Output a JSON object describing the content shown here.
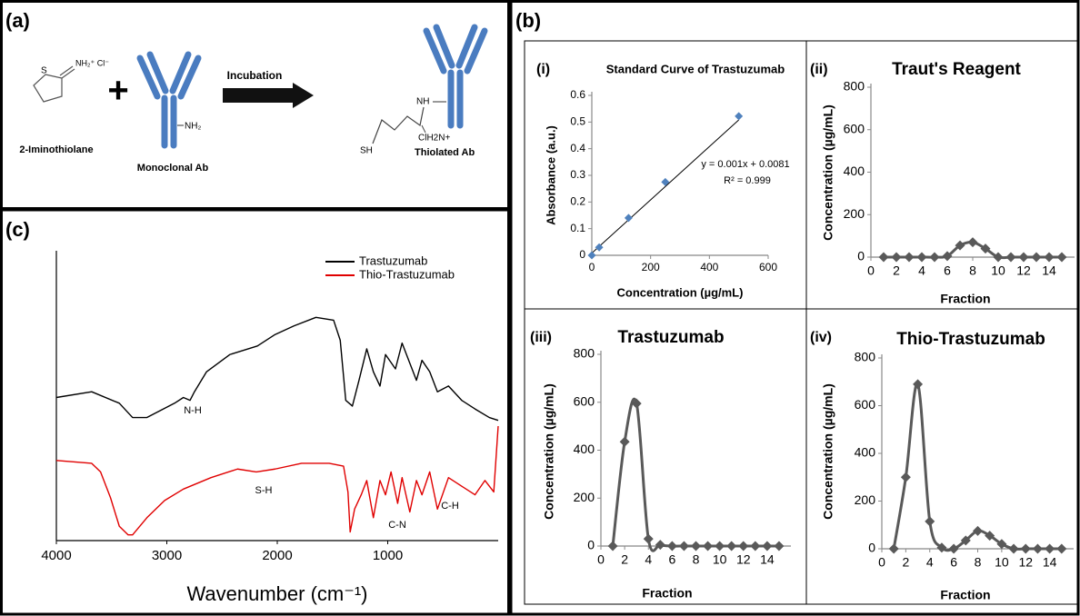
{
  "panels": {
    "a": "(a)",
    "b": "(b)",
    "c": "(c)"
  },
  "scheme": {
    "reagent_atom": "S",
    "reagent_group": "NH₂⁺ Cl⁻",
    "reagent": "2-Iminothiolane",
    "plus": "+",
    "antibody_group": "NH₂",
    "antibody": "Monoclonal Ab",
    "step": "Incubation",
    "product_nh": "NH",
    "product_amidine": "ClH2N+",
    "product_sh": "SH",
    "product": "Thiolated Ab"
  },
  "chart_data": [
    {
      "type": "line",
      "x_label": "Wavenumber (cm⁻¹)",
      "xlim": [
        4000,
        0
      ],
      "xticks": [
        4000,
        3000,
        2000,
        1000
      ],
      "ylim": [
        0,
        100
      ],
      "legend": "upper right",
      "annotations": [
        "N-H",
        "S-H",
        "C-N",
        "C-H"
      ],
      "series": [
        {
          "name": "Trastuzumab",
          "color": "#000000",
          "x": [
            4000,
            3680,
            3430,
            3310,
            3180,
            2930,
            2850,
            2790,
            2750,
            2640,
            2430,
            2180,
            2020,
            1850,
            1650,
            1490,
            1430,
            1380,
            1320,
            1260,
            1190,
            1130,
            1070,
            1020,
            930,
            870,
            800,
            740,
            690,
            620,
            550,
            450,
            330,
            210,
            80,
            0
          ],
          "values": [
            50,
            52,
            48,
            43,
            43,
            48,
            50,
            49,
            52,
            59,
            65,
            68,
            72,
            75,
            78,
            77,
            70,
            49,
            47,
            56,
            67,
            59,
            54,
            65,
            60,
            69,
            62,
            56,
            63,
            59,
            52,
            54,
            49,
            46,
            43,
            42
          ]
        },
        {
          "name": "Thio-Trastuzumab",
          "color": "#e00000",
          "x": [
            4000,
            3680,
            3600,
            3510,
            3430,
            3350,
            3310,
            3180,
            3020,
            2850,
            2600,
            2360,
            2190,
            2020,
            1780,
            1530,
            1400,
            1360,
            1340,
            1300,
            1240,
            1190,
            1130,
            1070,
            1020,
            970,
            910,
            870,
            800,
            740,
            690,
            620,
            550,
            450,
            330,
            210,
            120,
            40,
            0
          ],
          "values": [
            28,
            27,
            24,
            15,
            5,
            2,
            2,
            8,
            14,
            18,
            22,
            25,
            24,
            25,
            27,
            27,
            26,
            17,
            3,
            11,
            16,
            21,
            8,
            21,
            16,
            24,
            13,
            22,
            10,
            21,
            16,
            24,
            11,
            22,
            19,
            16,
            21,
            17,
            40
          ]
        }
      ]
    },
    {
      "type": "scatter",
      "panel_label": "(i)",
      "title": "Standard Curve of Trastuzumab",
      "x_label": "Concentration (µg/mL)",
      "y_label": "Absorbance (a.u.)",
      "x": [
        0,
        25,
        125,
        250,
        500
      ],
      "values": [
        0,
        0.03,
        0.14,
        0.275,
        0.522
      ],
      "color": "#4f81bd",
      "xlim": [
        0,
        600
      ],
      "xticks": [
        0,
        200,
        400,
        600
      ],
      "ylim": [
        0,
        0.6
      ],
      "yticks": [
        0,
        0.1,
        0.2,
        0.3,
        0.4,
        0.5,
        0.6
      ],
      "trendline": {
        "slope": 0.001,
        "intercept": 0.0081,
        "label": "y = 0.001x + 0.0081",
        "r2_label": "R² = 0.999"
      }
    },
    {
      "type": "line",
      "panel_label": "(ii)",
      "title": "Traut's Reagent",
      "x_label": "Fraction",
      "y_label": "Concentration (µg/mL)",
      "x": [
        1,
        2,
        3,
        4,
        5,
        6,
        7,
        8,
        9,
        10,
        11,
        12,
        13,
        14,
        15
      ],
      "values": [
        0,
        0,
        0,
        0,
        0,
        5,
        55,
        70,
        40,
        0,
        0,
        0,
        0,
        0,
        0
      ],
      "color": "#595959",
      "smooth": true,
      "marker": "diamond",
      "xlim": [
        0,
        16
      ],
      "xticks": [
        0,
        2,
        4,
        6,
        8,
        10,
        12,
        14
      ],
      "ylim": [
        0,
        800
      ],
      "yticks": [
        0,
        200,
        400,
        600,
        800
      ]
    },
    {
      "type": "line",
      "panel_label": "(iii)",
      "title": "Trastuzumab",
      "x_label": "Fraction",
      "y_label": "Concentration (µg/mL)",
      "x": [
        1,
        2,
        3,
        4,
        5,
        6,
        7,
        8,
        9,
        10,
        11,
        12,
        13,
        14,
        15
      ],
      "values": [
        0,
        435,
        595,
        30,
        5,
        0,
        0,
        0,
        0,
        0,
        0,
        0,
        0,
        0,
        0
      ],
      "color": "#595959",
      "smooth": true,
      "marker": "diamond",
      "xlim": [
        0,
        16
      ],
      "xticks": [
        0,
        2,
        4,
        6,
        8,
        10,
        12,
        14
      ],
      "ylim": [
        0,
        800
      ],
      "yticks": [
        0,
        200,
        400,
        600,
        800
      ]
    },
    {
      "type": "line",
      "panel_label": "(iv)",
      "title": "Thio-Trastuzumab",
      "x_label": "Fraction",
      "y_label": "Concentration (µg/mL)",
      "x": [
        1,
        2,
        3,
        4,
        5,
        6,
        7,
        8,
        9,
        10,
        11,
        12,
        13,
        14,
        15
      ],
      "values": [
        0,
        300,
        690,
        115,
        5,
        0,
        35,
        75,
        55,
        20,
        0,
        0,
        0,
        0,
        0
      ],
      "color": "#595959",
      "smooth": true,
      "marker": "diamond",
      "xlim": [
        0,
        16
      ],
      "xticks": [
        0,
        2,
        4,
        6,
        8,
        10,
        12,
        14
      ],
      "ylim": [
        0,
        800
      ],
      "yticks": [
        0,
        200,
        400,
        600,
        800
      ]
    }
  ]
}
